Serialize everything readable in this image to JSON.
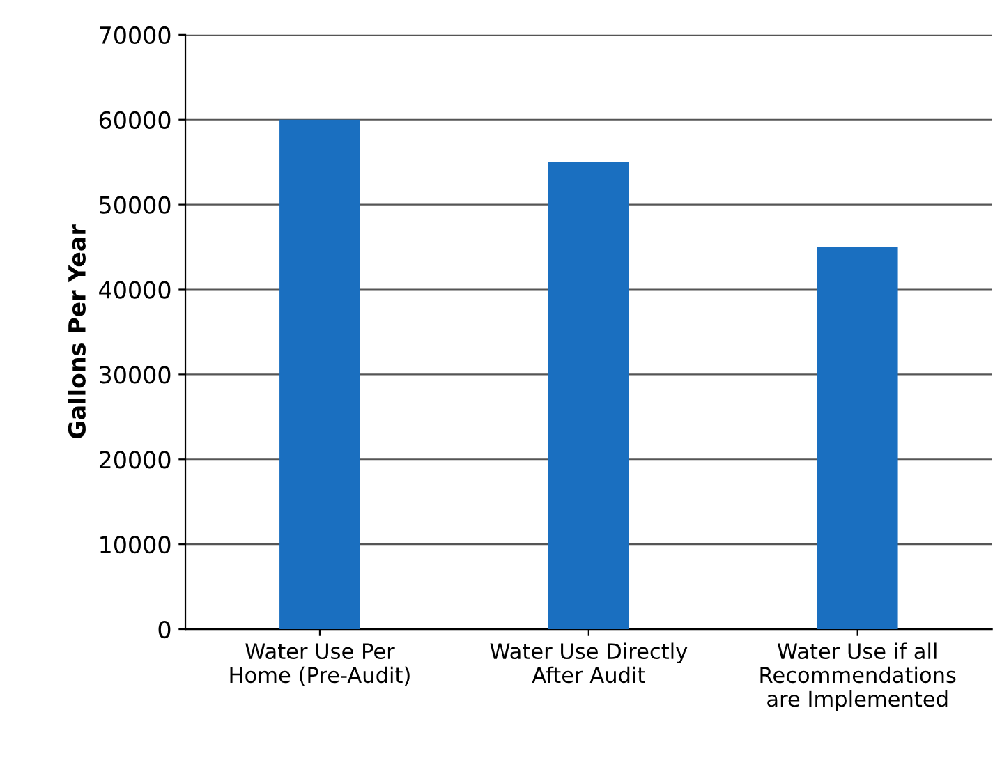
{
  "chart_data": {
    "type": "bar",
    "ylabel": "Gallons Per Year",
    "categories": [
      "Water Use Per\nHome (Pre-Audit)",
      "Water Use Directly\nAfter Audit",
      "Water Use if all\nRecommendations\nare Implemented"
    ],
    "values": [
      60000,
      55000,
      45000
    ],
    "color": "#1a6fc0",
    "ylim": [
      0,
      70000
    ],
    "yticks": [
      0,
      10000,
      20000,
      30000,
      40000,
      50000,
      60000,
      70000
    ],
    "grid": "y",
    "legend": false
  }
}
